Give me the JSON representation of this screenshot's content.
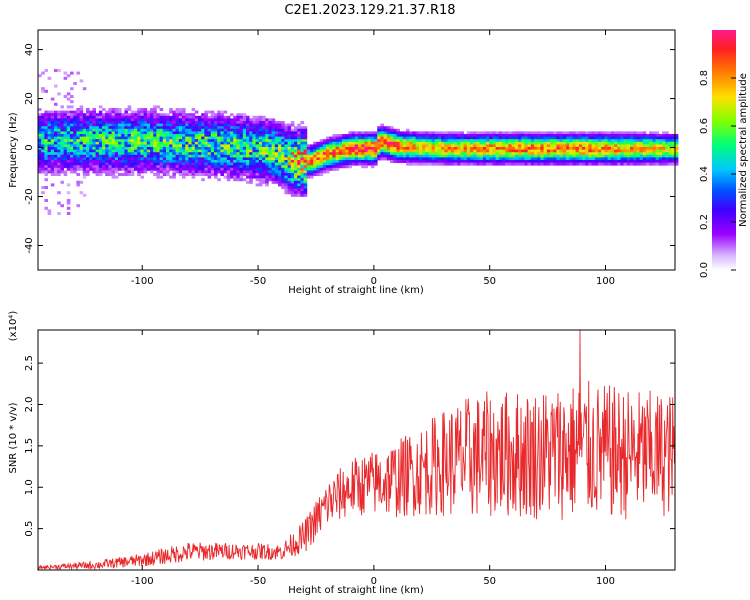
{
  "title": "C2E1.2023.129.21.37.R18",
  "colors": {
    "snr_line": "#e8282b",
    "spectrogram_colormap": [
      "#9a00ff",
      "#4000ff",
      "#0050ff",
      "#00c8ff",
      "#00ff7a",
      "#80ff00",
      "#ffe000",
      "#ff8000",
      "#ff2020",
      "#ff1a8c"
    ]
  },
  "chart_data": [
    {
      "type": "heatmap",
      "xlabel": "Height of straight line (km)",
      "ylabel": "Frequency (Hz)",
      "xlim": [
        -145,
        130
      ],
      "ylim": [
        -50,
        48
      ],
      "x_ticks": [
        -100,
        -50,
        0,
        50,
        100
      ],
      "y_ticks": [
        -40,
        -20,
        0,
        20,
        40
      ],
      "grid": false,
      "colorbar": {
        "label": "Normalized spectral amplitude",
        "range": [
          0.0,
          1.0
        ],
        "ticks": [
          0.0,
          0.2,
          0.4,
          0.6,
          0.8
        ]
      },
      "ridge_center_hz": [
        [
          -140,
          3
        ],
        [
          -120,
          3
        ],
        [
          -100,
          3
        ],
        [
          -80,
          2
        ],
        [
          -60,
          1
        ],
        [
          -45,
          -1
        ],
        [
          -35,
          -5
        ],
        [
          -28,
          -5
        ],
        [
          -20,
          -2
        ],
        [
          -10,
          0
        ],
        [
          0,
          0
        ],
        [
          2,
          3
        ],
        [
          10,
          1
        ],
        [
          30,
          0
        ],
        [
          60,
          0
        ],
        [
          90,
          0
        ],
        [
          130,
          0
        ]
      ],
      "ridge_peak_amplitude": [
        [
          -140,
          0.45
        ],
        [
          -100,
          0.5
        ],
        [
          -60,
          0.5
        ],
        [
          -40,
          0.55
        ],
        [
          -30,
          0.85
        ],
        [
          -15,
          0.9
        ],
        [
          0,
          1.0
        ],
        [
          20,
          0.75
        ],
        [
          60,
          0.85
        ],
        [
          100,
          0.85
        ],
        [
          130,
          0.7
        ]
      ]
    },
    {
      "type": "line",
      "xlabel": "Height of straight line (km)",
      "ylabel": "SNR (10 * v/v)",
      "y_multiplier_label": "(x10⁴)",
      "xlim": [
        -145,
        130
      ],
      "ylim": [
        0.0,
        2.9
      ],
      "x_ticks": [
        -100,
        -50,
        0,
        50,
        100
      ],
      "y_ticks": [
        0.5,
        1.0,
        1.5,
        2.0,
        2.5
      ],
      "grid": false,
      "series": [
        {
          "color": "#e8282b",
          "envelope_mean": [
            [
              -145,
              0.03
            ],
            [
              -120,
              0.06
            ],
            [
              -100,
              0.12
            ],
            [
              -80,
              0.22
            ],
            [
              -60,
              0.23
            ],
            [
              -40,
              0.22
            ],
            [
              -30,
              0.4
            ],
            [
              -20,
              0.8
            ],
            [
              -10,
              1.0
            ],
            [
              0,
              1.05
            ],
            [
              10,
              1.1
            ],
            [
              20,
              1.2
            ],
            [
              30,
              1.3
            ],
            [
              40,
              1.35
            ],
            [
              50,
              1.4
            ],
            [
              70,
              1.4
            ],
            [
              90,
              1.45
            ],
            [
              110,
              1.4
            ],
            [
              130,
              1.4
            ]
          ],
          "envelope_spread": [
            [
              -145,
              0.02
            ],
            [
              -120,
              0.05
            ],
            [
              -100,
              0.08
            ],
            [
              -80,
              0.12
            ],
            [
              -60,
              0.1
            ],
            [
              -40,
              0.1
            ],
            [
              -30,
              0.2
            ],
            [
              -20,
              0.3
            ],
            [
              -10,
              0.35
            ],
            [
              0,
              0.4
            ],
            [
              20,
              0.55
            ],
            [
              40,
              0.75
            ],
            [
              70,
              0.8
            ],
            [
              90,
              0.85
            ],
            [
              130,
              0.75
            ]
          ],
          "peak": {
            "x": 89,
            "y": 2.9
          }
        }
      ]
    }
  ]
}
